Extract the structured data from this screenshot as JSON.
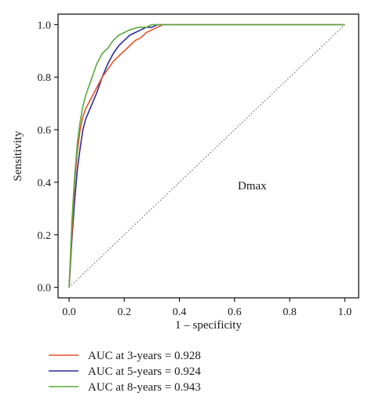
{
  "chart_data": {
    "type": "line",
    "title": "",
    "xlabel": "1 – specificity",
    "ylabel": "Sensitivity",
    "xlim": [
      -0.04,
      1.05
    ],
    "ylim": [
      -0.04,
      1.04
    ],
    "xticks": [
      0.0,
      0.2,
      0.4,
      0.6,
      0.8,
      1.0
    ],
    "xtick_labels": [
      "0.0",
      "0.2",
      "0.4",
      "0.6",
      "0.8",
      "1.0"
    ],
    "yticks": [
      0.0,
      0.2,
      0.4,
      0.6,
      0.8,
      1.0
    ],
    "ytick_labels": [
      "0.0",
      "0.2",
      "0.4",
      "0.6",
      "0.8",
      "1.0"
    ],
    "grid": false,
    "legend_placement": "bottom-left, outside plot",
    "annotation": "Dmax",
    "reference_line": {
      "style": "dotted",
      "color": "#555555",
      "x": [
        0,
        1
      ],
      "y": [
        0,
        1
      ]
    },
    "series": [
      {
        "name": "AUC at 3-years = 0.928",
        "color": "#e8502a",
        "x": [
          0.0,
          0.01,
          0.02,
          0.03,
          0.04,
          0.05,
          0.06,
          0.07,
          0.08,
          0.1,
          0.12,
          0.14,
          0.16,
          0.18,
          0.2,
          0.22,
          0.24,
          0.26,
          0.28,
          0.3,
          0.32,
          0.34,
          0.35,
          1.0
        ],
        "y": [
          0.0,
          0.2,
          0.4,
          0.52,
          0.6,
          0.65,
          0.68,
          0.7,
          0.72,
          0.76,
          0.8,
          0.83,
          0.86,
          0.88,
          0.9,
          0.92,
          0.94,
          0.95,
          0.97,
          0.98,
          0.99,
          1.0,
          1.0,
          1.0
        ]
      },
      {
        "name": "AUC at 5-years = 0.924",
        "color": "#2b2d9c",
        "x": [
          0.0,
          0.01,
          0.02,
          0.03,
          0.04,
          0.05,
          0.06,
          0.08,
          0.1,
          0.12,
          0.14,
          0.16,
          0.18,
          0.2,
          0.22,
          0.24,
          0.26,
          0.28,
          0.3,
          0.32,
          0.34,
          0.35,
          1.0
        ],
        "y": [
          0.0,
          0.18,
          0.33,
          0.45,
          0.53,
          0.6,
          0.64,
          0.69,
          0.74,
          0.8,
          0.85,
          0.89,
          0.92,
          0.94,
          0.96,
          0.97,
          0.98,
          0.99,
          0.99,
          1.0,
          1.0,
          1.0,
          1.0
        ]
      },
      {
        "name": "AUC at 8-years = 0.943",
        "color": "#5aaa3c",
        "x": [
          0.0,
          0.01,
          0.02,
          0.03,
          0.04,
          0.05,
          0.06,
          0.07,
          0.08,
          0.1,
          0.12,
          0.14,
          0.16,
          0.18,
          0.2,
          0.22,
          0.25,
          0.28,
          0.3,
          0.33,
          0.35,
          1.0
        ],
        "y": [
          0.0,
          0.25,
          0.42,
          0.55,
          0.63,
          0.69,
          0.73,
          0.76,
          0.79,
          0.85,
          0.89,
          0.91,
          0.94,
          0.96,
          0.97,
          0.98,
          0.99,
          0.99,
          1.0,
          1.0,
          1.0,
          1.0
        ]
      }
    ]
  }
}
